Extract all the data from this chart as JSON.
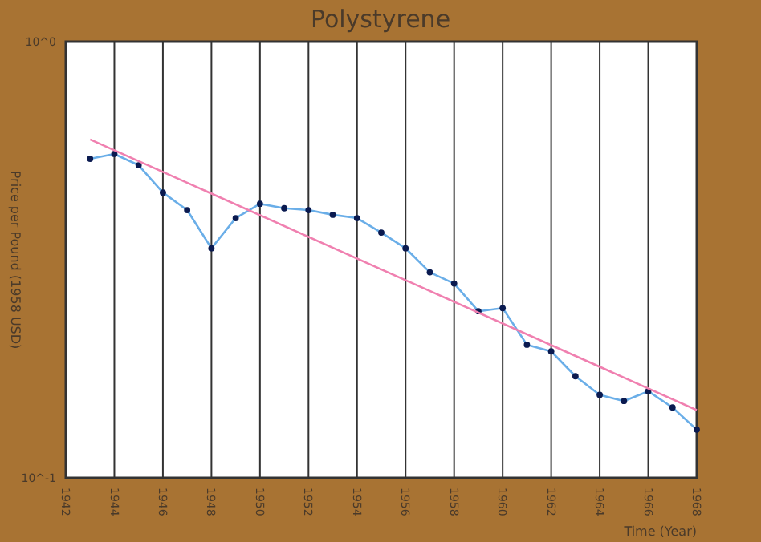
{
  "chart_data": {
    "type": "line",
    "title": "Polystyrene",
    "xlabel": "Time (Year)",
    "ylabel": "Price per Pound (1958 USD)",
    "log": "y",
    "grid": "x",
    "marker": "circle",
    "xlim": [
      1942,
      1968
    ],
    "xticks": [
      1942,
      1944,
      1946,
      1948,
      1950,
      1952,
      1954,
      1956,
      1958,
      1960,
      1962,
      1964,
      1966,
      1968
    ],
    "ylim": [
      0.1,
      1
    ],
    "yticks": [
      {
        "value": 0.1,
        "label": "10^-1"
      },
      {
        "value": 1,
        "label": "10^0"
      }
    ],
    "series": [
      {
        "color": "#6aaee8",
        "x": [
          1943,
          1944,
          1945,
          1946,
          1947,
          1948,
          1949,
          1950,
          1951,
          1952,
          1953,
          1954,
          1955,
          1956,
          1957,
          1958,
          1959,
          1960,
          1961,
          1962,
          1963,
          1964,
          1965,
          1966,
          1967,
          1968
        ],
        "values": [
          0.539,
          0.553,
          0.521,
          0.451,
          0.411,
          0.336,
          0.394,
          0.425,
          0.415,
          0.411,
          0.401,
          0.394,
          0.365,
          0.336,
          0.296,
          0.279,
          0.241,
          0.245,
          0.202,
          0.195,
          0.171,
          0.155,
          0.15,
          0.158,
          0.145,
          0.129
        ]
      },
      {
        "color": "#f080b0",
        "marker": "none",
        "x": [
          1943,
          1968
        ],
        "values": [
          0.597,
          0.143
        ]
      }
    ]
  }
}
